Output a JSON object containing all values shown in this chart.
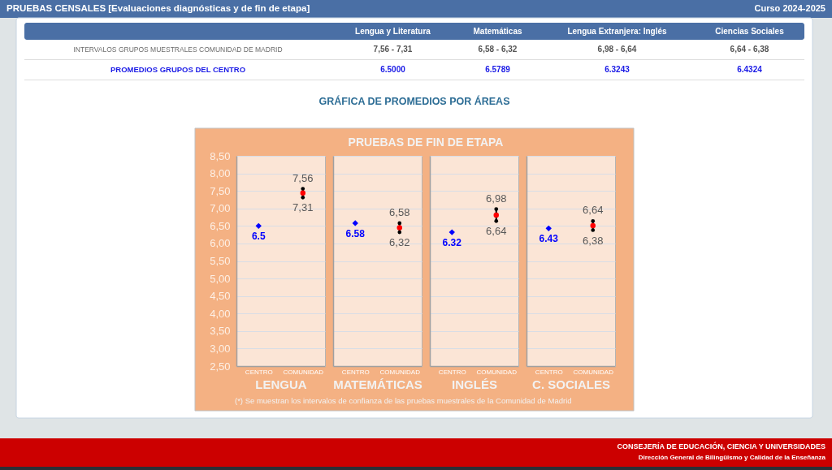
{
  "chart_data": [
    {
      "type": "other",
      "title": "PRUEBAS CENSALES [Evaluaciones diagnósticas y de fin de etapa]",
      "subtitle": "Curso 2024-2025",
      "annotations": [
        "Lengua y Literatura",
        "Matemáticas",
        "Lengua Extranjera: Inglés",
        "Ciencias Sociales",
        "INTERVALOS GRUPOS MUESTRALES COMUNIDAD DE MADRID",
        "7,56 - 7,31",
        "6,58 - 6,32",
        "6,98 - 6,64",
        "6,64 - 6,38",
        "PROMEDIOS GRUPOS DEL CENTRO",
        "6.5000",
        "6.5789",
        "6.3243",
        "6.4324",
        "GRÁFICA DE PROMEDIOS POR ÁREAS",
        "PRUEBAS DE FIN DE ETAPA",
        "(*) Se muestran los intervalos de confianza de las pruebas muestrales de la Comunidad de Madrid",
        "CONSEJERÍA DE EDUCACIÓN, CIENCIA Y UNIVERSIDADES",
        "Dirección General de Bilingüismo y Calidad de la Enseñanza"
      ]
    },
    {
      "type": "scatter",
      "xlabel": "LENGUA",
      "categories": [
        "CENTRO",
        "COMUNIDAD"
      ],
      "ylim": [
        2.5,
        8.5
      ],
      "yticks": [
        {
          "value": 2.5,
          "label": "2,50"
        },
        {
          "value": 3,
          "label": "3,00"
        },
        {
          "value": 3.5,
          "label": "3,50"
        },
        {
          "value": 4,
          "label": "4,00"
        },
        {
          "value": 4.5,
          "label": "4,50"
        },
        {
          "value": 5,
          "label": "5,00"
        },
        {
          "value": 5.5,
          "label": "5,50"
        },
        {
          "value": 6,
          "label": "6,00"
        },
        {
          "value": 6.5,
          "label": "6,50"
        },
        {
          "value": 7,
          "label": "7,00"
        },
        {
          "value": 7.5,
          "label": "7,50"
        },
        {
          "value": 8,
          "label": "8,00"
        },
        {
          "value": 8.5,
          "label": "8,50"
        }
      ],
      "grid": "y",
      "series": [
        {
          "color": "#0000ff",
          "marker": "diamond",
          "values": [
            6.5,
            null
          ],
          "value_labels": [
            "6.5",
            null
          ]
        },
        {
          "color": "#ff0000",
          "marker": "circle",
          "values": [
            null,
            7.44
          ],
          "errors": [
            null,
            [
              7.31,
              7.56
            ]
          ]
        }
      ],
      "annotations": [
        {
          "text": "7,56",
          "x": "COMUNIDAD",
          "y": 7.56
        },
        {
          "text": "7,31",
          "x": "COMUNIDAD",
          "y": 7.31
        }
      ]
    },
    {
      "type": "scatter",
      "xlabel": "MATEMÁTICAS",
      "categories": [
        "CENTRO",
        "COMUNIDAD"
      ],
      "ylim": [
        2.5,
        8.5
      ],
      "yticks": [
        2.5,
        3,
        3.5,
        4,
        4.5,
        5,
        5.5,
        6,
        6.5,
        7,
        7.5,
        8,
        8.5
      ],
      "grid": "y",
      "tick_labels": "x",
      "series": [
        {
          "color": "#0000ff",
          "marker": "diamond",
          "values": [
            6.58,
            null
          ],
          "value_labels": [
            "6.58",
            null
          ]
        },
        {
          "color": "#ff0000",
          "marker": "circle",
          "values": [
            null,
            6.45
          ],
          "errors": [
            null,
            [
              6.32,
              6.58
            ]
          ]
        }
      ],
      "annotations": [
        {
          "text": "6,58",
          "x": "COMUNIDAD",
          "y": 6.58
        },
        {
          "text": "6,32",
          "x": "COMUNIDAD",
          "y": 6.32
        }
      ]
    },
    {
      "type": "scatter",
      "xlabel": "INGLÉS",
      "categories": [
        "CENTRO",
        "COMUNIDAD"
      ],
      "ylim": [
        2.5,
        8.5
      ],
      "yticks": [
        2.5,
        3,
        3.5,
        4,
        4.5,
        5,
        5.5,
        6,
        6.5,
        7,
        7.5,
        8,
        8.5
      ],
      "grid": "y",
      "tick_labels": "x",
      "series": [
        {
          "color": "#0000ff",
          "marker": "diamond",
          "values": [
            6.32,
            null
          ],
          "value_labels": [
            "6.32",
            null
          ]
        },
        {
          "color": "#ff0000",
          "marker": "circle",
          "values": [
            null,
            6.81
          ],
          "errors": [
            null,
            [
              6.64,
              6.98
            ]
          ]
        }
      ],
      "annotations": [
        {
          "text": "6,98",
          "x": "COMUNIDAD",
          "y": 6.98
        },
        {
          "text": "6,64",
          "x": "COMUNIDAD",
          "y": 6.64
        }
      ]
    },
    {
      "type": "scatter",
      "xlabel": "C. SOCIALES",
      "categories": [
        "CENTRO",
        "COMUNIDAD"
      ],
      "ylim": [
        2.5,
        8.5
      ],
      "yticks": [
        2.5,
        3,
        3.5,
        4,
        4.5,
        5,
        5.5,
        6,
        6.5,
        7,
        7.5,
        8,
        8.5
      ],
      "grid": "y",
      "tick_labels": "x",
      "series": [
        {
          "color": "#0000ff",
          "marker": "diamond",
          "values": [
            6.43,
            null
          ],
          "value_labels": [
            "6.43",
            null
          ]
        },
        {
          "color": "#ff0000",
          "marker": "circle",
          "values": [
            null,
            6.51
          ],
          "errors": [
            null,
            [
              6.38,
              6.64
            ]
          ]
        }
      ],
      "annotations": [
        {
          "text": "6,64",
          "x": "COMUNIDAD",
          "y": 6.64
        },
        {
          "text": "6,38",
          "x": "COMUNIDAD",
          "y": 6.38
        }
      ]
    }
  ]
}
